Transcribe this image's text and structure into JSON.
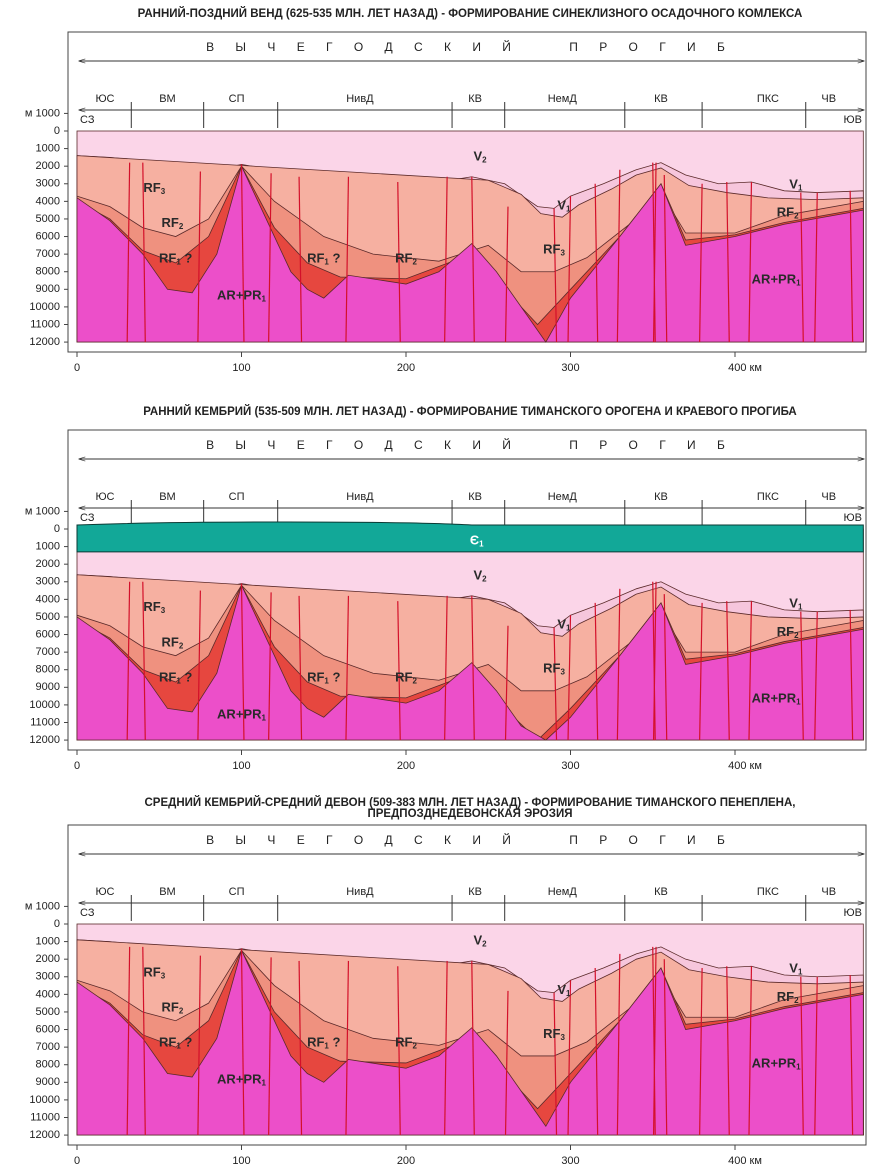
{
  "panels": [
    {
      "title": [
        "РАННИЙ-ПОЗДНИЙ ВЕНД (625-535 МЛН. ЛЕТ НАЗАД) - ФОРМИРОВАНИЕ СИНЕКЛИЗНОГО ОСАДОЧНОГО КОМЛЕКСА"
      ],
      "trough": "В Ы Ч Е Г О Д С К И Й    П Р О Г И Б",
      "segments": [
        "ЮС",
        "ВМ",
        "СП",
        "НивД",
        "КВ",
        "НемД",
        "КВ",
        "ПКС",
        "ЧВ"
      ],
      "west": "СЗ",
      "east": "ЮВ",
      "depth_ticks": [
        "м 1000",
        "0",
        "1000",
        "2000",
        "3000",
        "4000",
        "5000",
        "6000",
        "7000",
        "8000",
        "9000",
        "10000",
        "11000",
        "12000"
      ],
      "distance_ticks": [
        "0",
        "100",
        "200",
        "300",
        "400 км"
      ],
      "units": [
        {
          "base": "V",
          "sub": "2"
        },
        {
          "base": "V",
          "sub": "1"
        },
        {
          "base": "V",
          "sub": "1"
        },
        {
          "base": "RF",
          "sub": "3"
        },
        {
          "base": "RF",
          "sub": "2"
        },
        {
          "base": "RF",
          "sub": "1",
          "tail": " ?"
        },
        {
          "base": "RF",
          "sub": "1",
          "tail": " ?"
        },
        {
          "base": "RF",
          "sub": "2"
        },
        {
          "base": "RF",
          "sub": "3"
        },
        {
          "base": "AR+PR",
          "sub": "1"
        },
        {
          "base": "AR+PR",
          "sub": "1"
        },
        {
          "base": "RF",
          "sub": "2"
        }
      ]
    },
    {
      "title": [
        "РАННИЙ КЕМБРИЙ (535-509 МЛН. ЛЕТ НАЗАД) - ФОРМИРОВАНИЕ ТИМАНСКОГО ОРОГЕНА И КРАЕВОГО ПРОГИБА"
      ],
      "trough": "В Ы Ч Е Г О Д С К И Й    П Р О Г И Б",
      "segments": [
        "ЮС",
        "ВМ",
        "СП",
        "НивД",
        "КВ",
        "НемД",
        "КВ",
        "ПКС",
        "ЧВ"
      ],
      "west": "СЗ",
      "east": "ЮВ",
      "depth_ticks": [
        "м 1000",
        "0",
        "1000",
        "2000",
        "3000",
        "4000",
        "5000",
        "6000",
        "7000",
        "8000",
        "9000",
        "10000",
        "11000",
        "12000"
      ],
      "distance_ticks": [
        "0",
        "100",
        "200",
        "300",
        "400 км"
      ],
      "units": [
        {
          "base": "V",
          "sub": "2"
        },
        {
          "base": "V",
          "sub": "1"
        },
        {
          "base": "V",
          "sub": "1"
        },
        {
          "base": "RF",
          "sub": "3"
        },
        {
          "base": "RF",
          "sub": "2"
        },
        {
          "base": "RF",
          "sub": "1",
          "tail": " ?"
        },
        {
          "base": "RF",
          "sub": "1",
          "tail": " ?"
        },
        {
          "base": "RF",
          "sub": "2"
        },
        {
          "base": "RF",
          "sub": "3"
        },
        {
          "base": "AR+PR",
          "sub": "1"
        },
        {
          "base": "AR+PR",
          "sub": "1"
        },
        {
          "base": "RF",
          "sub": "2"
        },
        {
          "base": "Є",
          "sub": "1"
        }
      ]
    },
    {
      "title": [
        "СРЕДНИЙ КЕМБРИЙ-СРЕДНИЙ ДЕВОН (509-383 МЛН. ЛЕТ НАЗАД) - ФОРМИРОВАНИЕ ТИМАНСКОГО ПЕНЕПЛЕНА,",
        "ПРЕДПОЗДНЕДЕВОНСКАЯ ЭРОЗИЯ"
      ],
      "trough": "В Ы Ч Е Г О Д С К И Й    П Р О Г И Б",
      "segments": [
        "ЮС",
        "ВМ",
        "СП",
        "НивД",
        "КВ",
        "НемД",
        "КВ",
        "ПКС",
        "ЧВ"
      ],
      "west": "СЗ",
      "east": "ЮВ",
      "depth_ticks": [
        "м 1000",
        "0",
        "1000",
        "2000",
        "3000",
        "4000",
        "5000",
        "6000",
        "7000",
        "8000",
        "9000",
        "10000",
        "11000",
        "12000"
      ],
      "distance_ticks": [
        "0",
        "100",
        "200",
        "300",
        "400 км"
      ],
      "units": [
        {
          "base": "V",
          "sub": "2"
        },
        {
          "base": "V",
          "sub": "1"
        },
        {
          "base": "V",
          "sub": "1"
        },
        {
          "base": "RF",
          "sub": "3"
        },
        {
          "base": "RF",
          "sub": "2"
        },
        {
          "base": "RF",
          "sub": "1",
          "tail": " ?"
        },
        {
          "base": "RF",
          "sub": "1",
          "tail": " ?"
        },
        {
          "base": "RF",
          "sub": "2"
        },
        {
          "base": "RF",
          "sub": "3"
        },
        {
          "base": "AR+PR",
          "sub": "1"
        },
        {
          "base": "AR+PR",
          "sub": "1"
        },
        {
          "base": "RF",
          "sub": "2"
        }
      ]
    }
  ]
}
